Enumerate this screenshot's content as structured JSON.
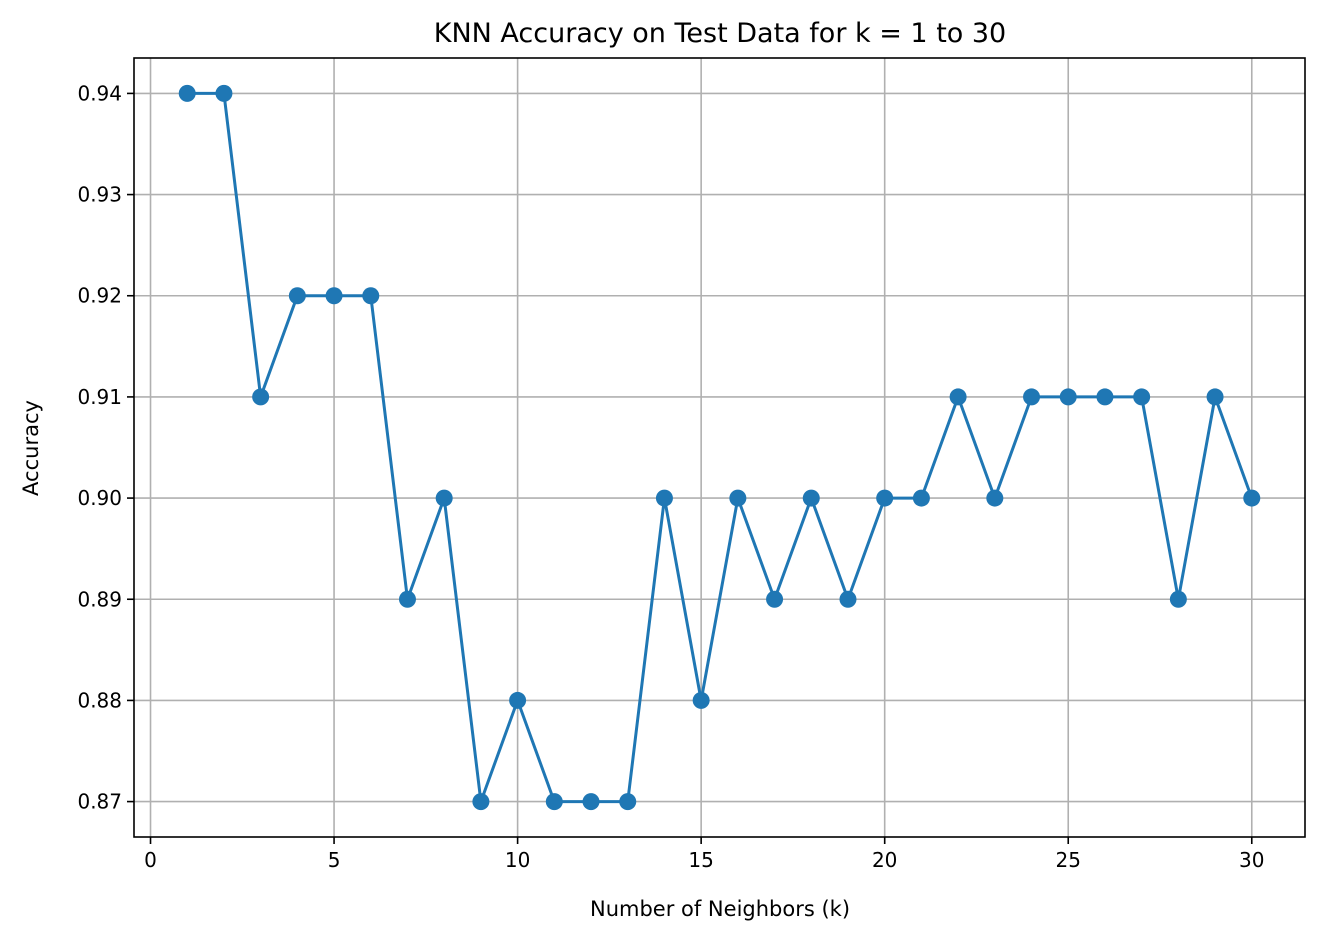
{
  "chart_data": {
    "type": "line",
    "title": "KNN Accuracy on Test Data for k = 1 to 30",
    "xlabel": "Number of Neighbors (k)",
    "ylabel": "Accuracy",
    "xlim": [
      -0.45,
      31.45
    ],
    "ylim": [
      0.8665,
      0.9435
    ],
    "xticks": [
      0,
      5,
      10,
      15,
      20,
      25,
      30
    ],
    "xtick_labels": [
      "0",
      "5",
      "10",
      "15",
      "20",
      "25",
      "30"
    ],
    "yticks": [
      0.87,
      0.88,
      0.89,
      0.9,
      0.91,
      0.92,
      0.93,
      0.94
    ],
    "ytick_labels": [
      "0.87",
      "0.88",
      "0.89",
      "0.90",
      "0.91",
      "0.92",
      "0.93",
      "0.94"
    ],
    "grid": true,
    "marker": "circle",
    "color": "#1f77b4",
    "x": [
      1,
      2,
      3,
      4,
      5,
      6,
      7,
      8,
      9,
      10,
      11,
      12,
      13,
      14,
      15,
      16,
      17,
      18,
      19,
      20,
      21,
      22,
      23,
      24,
      25,
      26,
      27,
      28,
      29,
      30
    ],
    "y": [
      0.94,
      0.94,
      0.91,
      0.92,
      0.92,
      0.92,
      0.89,
      0.9,
      0.87,
      0.88,
      0.87,
      0.87,
      0.87,
      0.9,
      0.88,
      0.9,
      0.89,
      0.9,
      0.89,
      0.9,
      0.9,
      0.91,
      0.9,
      0.91,
      0.91,
      0.91,
      0.91,
      0.89,
      0.91,
      0.9
    ]
  }
}
